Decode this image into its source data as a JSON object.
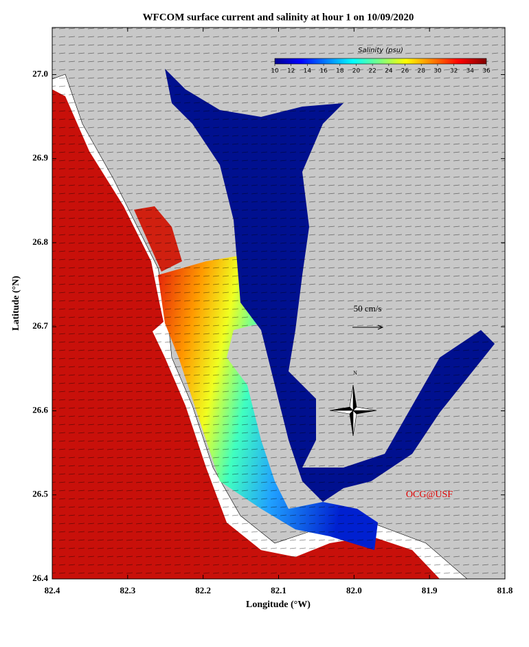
{
  "title": "WFCOM surface current and salinity at hour 1 on 10/09/2020",
  "x_axis": {
    "label": "Longitude (°W)",
    "lim": [
      82.4,
      81.8
    ],
    "ticks": [
      82.4,
      82.3,
      82.2,
      82.1,
      {
        "value": 82.0,
        "label": "82.0"
      },
      81.9,
      81.8
    ]
  },
  "y_axis": {
    "label": "Latitude (°N)",
    "lim": [
      26.4,
      27.056
    ],
    "ticks": [
      {
        "value": 26.4,
        "label": "26.4"
      },
      26.5,
      26.6,
      26.7,
      26.8,
      26.9,
      {
        "value": 27.0,
        "label": "27.0"
      }
    ]
  },
  "colorbar": {
    "label": "Salinity (psu)",
    "lim": [
      10,
      36
    ],
    "ticks": [
      10,
      12,
      14,
      16,
      18,
      20,
      22,
      24,
      26,
      28,
      30,
      32,
      34,
      36
    ]
  },
  "scale_arrow": "50 cm/s",
  "compass": "N",
  "credit": "OCG@USF"
}
